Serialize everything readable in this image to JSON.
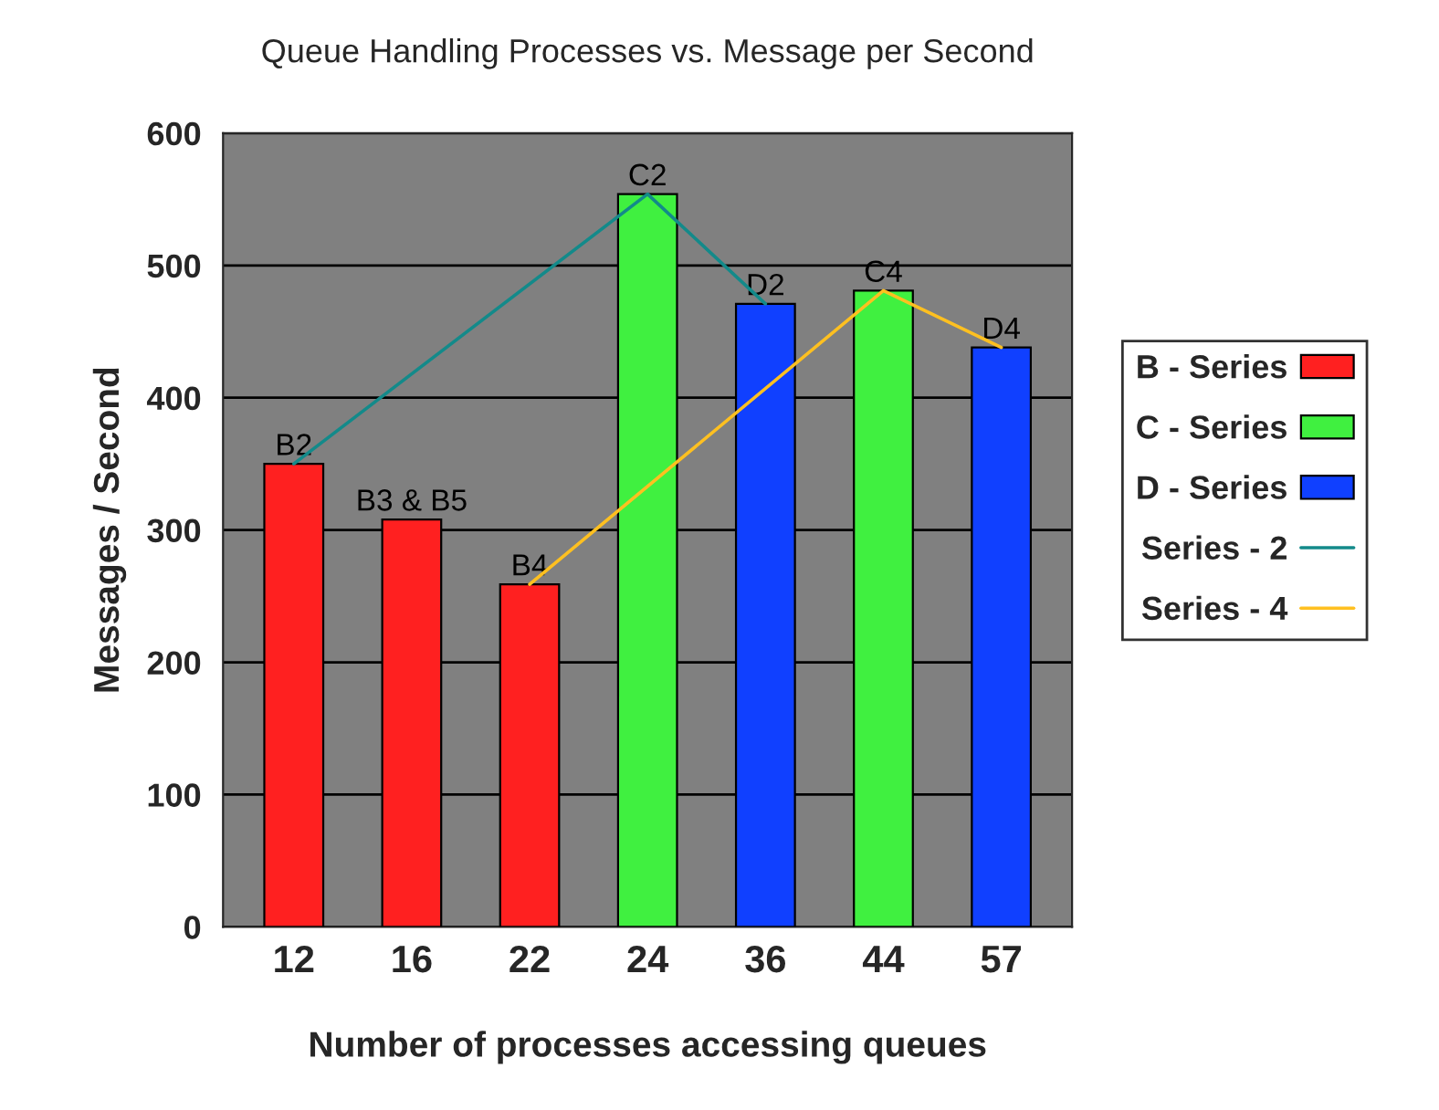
{
  "chart_data": {
    "type": "bar",
    "title": "Queue Handling Processes vs. Message per Second",
    "xlabel": "Number of processes accessing queues",
    "ylabel": "Messages / Second",
    "categories": [
      "12",
      "16",
      "22",
      "24",
      "36",
      "44",
      "57"
    ],
    "series": [
      {
        "name": "B - Series",
        "color": "#ff2020",
        "values": [
          350,
          308,
          259,
          null,
          null,
          null,
          null
        ],
        "value_labels": [
          "B2",
          "B3 & B5",
          "B4",
          null,
          null,
          null,
          null
        ]
      },
      {
        "name": "C - Series",
        "color": "#40f040",
        "values": [
          null,
          null,
          null,
          554,
          null,
          481,
          null
        ],
        "value_labels": [
          null,
          null,
          null,
          "C2",
          null,
          "C4",
          null
        ]
      },
      {
        "name": "D - Series",
        "color": "#1040ff",
        "values": [
          null,
          null,
          null,
          null,
          471,
          null,
          438
        ],
        "value_labels": [
          null,
          null,
          null,
          null,
          "D2",
          null,
          "D4"
        ]
      },
      {
        "name": "Series - 2",
        "type": "line",
        "color": "#138a8a",
        "x": [
          "12",
          "24",
          "36"
        ],
        "values": [
          350,
          554,
          471
        ]
      },
      {
        "name": "Series - 4",
        "type": "line",
        "color": "#ffc020",
        "x": [
          "22",
          "44",
          "57"
        ],
        "values": [
          259,
          481,
          438
        ]
      }
    ],
    "ylim": [
      0,
      600
    ],
    "yticks": [
      0,
      100,
      200,
      300,
      400,
      500,
      600
    ],
    "grid": "y",
    "legend": "right"
  }
}
